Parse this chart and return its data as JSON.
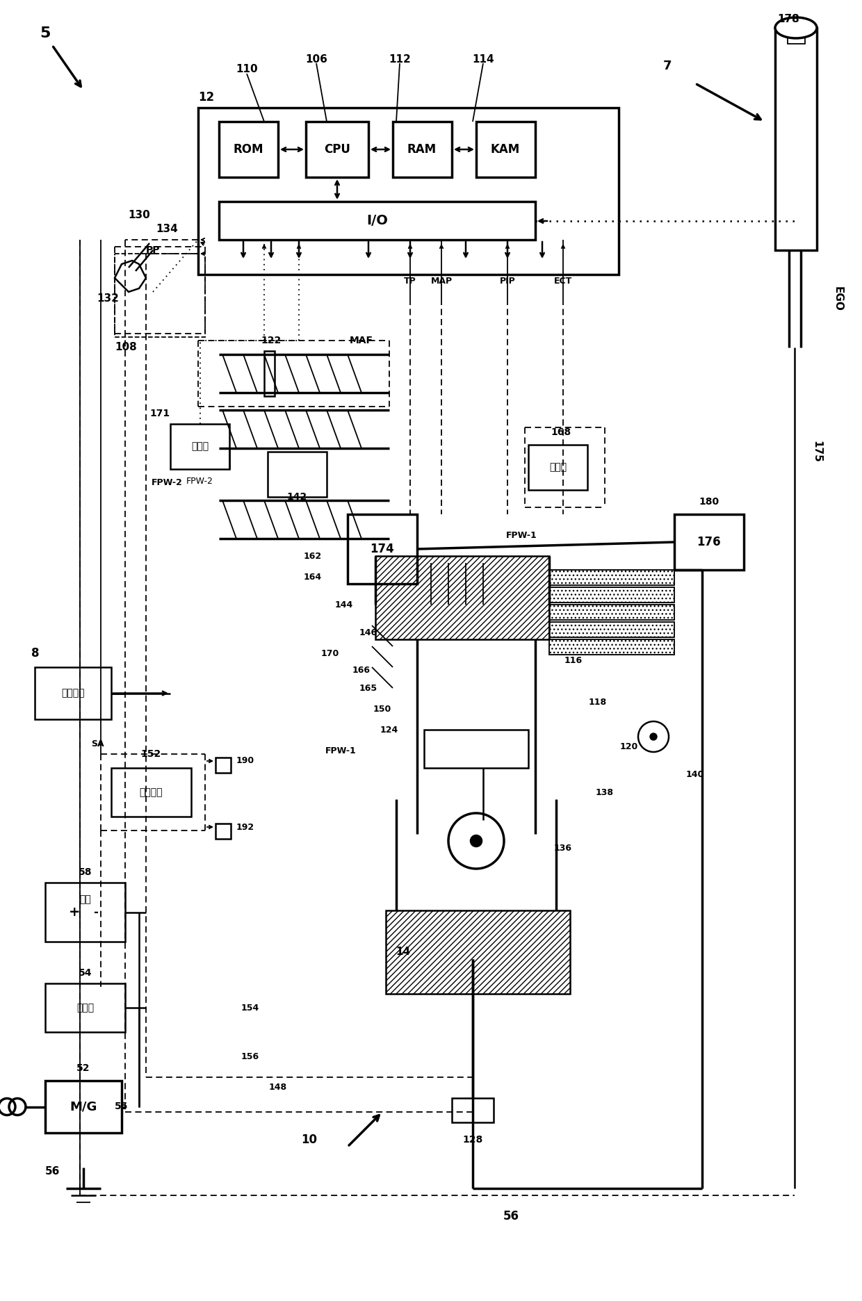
{
  "bg_color": "#ffffff",
  "labels": {
    "5": "5",
    "7": "7",
    "8": "8",
    "10": "10",
    "12": "12",
    "14": "14",
    "52": "52",
    "54": "54",
    "55": "55",
    "56": "56",
    "58": "58",
    "106": "106",
    "108": "108",
    "110": "110",
    "112": "112",
    "114": "114",
    "116": "116",
    "118": "118",
    "120": "120",
    "122": "122",
    "124": "124",
    "128": "128",
    "130": "130",
    "132": "132",
    "134": "134",
    "136": "136",
    "138": "138",
    "140": "140",
    "142": "142",
    "144": "144",
    "146": "146",
    "148": "148",
    "150": "150",
    "152": "152",
    "154": "154",
    "156": "156",
    "162": "162",
    "164": "164",
    "165": "165",
    "166": "166",
    "168": "168",
    "170": "170",
    "171": "171",
    "174": "174",
    "175": "175",
    "176": "176",
    "178": "178",
    "180": "180",
    "190": "190",
    "192": "192",
    "ROM": "ROM",
    "CPU": "CPU",
    "RAM": "RAM",
    "KAM": "KAM",
    "IO": "I/O",
    "PP": "PP",
    "MAF": "MAF",
    "TP": "TP",
    "MAP": "MAP",
    "PIP": "PIP",
    "ECT": "ECT",
    "EGO": "EGO",
    "SA": "SA",
    "FPW1": "FPW-1",
    "FPW2": "FPW-2",
    "driver": "驱动器",
    "ignition": "点火系统",
    "battery": "电池",
    "fuel": "燃料系统",
    "transducer": "变速器",
    "MG": "M/G"
  }
}
